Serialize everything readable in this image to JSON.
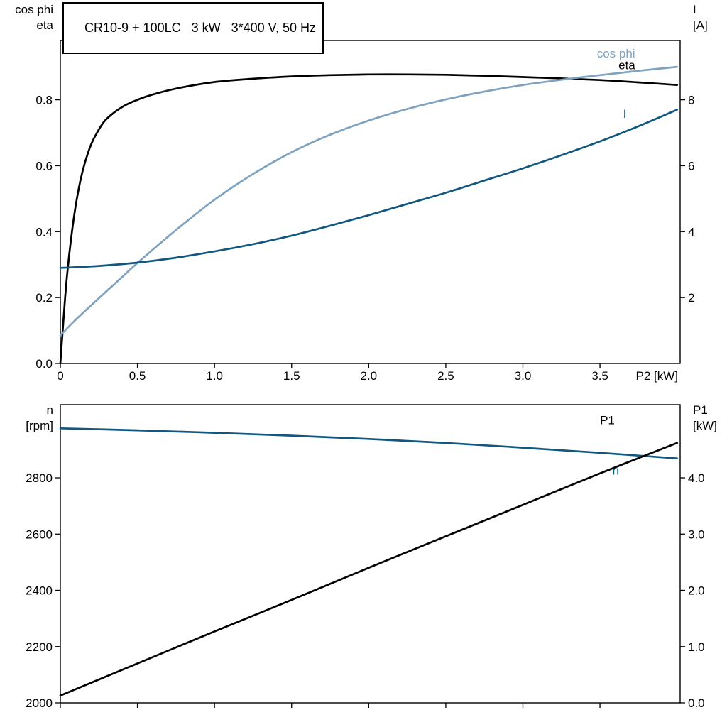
{
  "title_box": "CR10-9 + 100LC   3 kW   3*400 V, 50 Hz",
  "colors": {
    "black": "#000000",
    "dark_blue": "#11577F",
    "light_blue": "#7EA2BF",
    "axis": "#000000",
    "background": "#ffffff"
  },
  "chart_data": [
    {
      "type": "line",
      "title": "CR10-9 + 100LC   3 kW   3*400 V, 50 Hz",
      "x_axis": {
        "label": "P2 [kW]",
        "range": [
          0,
          4.02
        ],
        "ticks": [
          0,
          0.5,
          1,
          1.5,
          2,
          2.5,
          3,
          3.5
        ],
        "tick_labels": [
          "0",
          "0.5",
          "1.0",
          "1.5",
          "2.0",
          "2.5",
          "3.0",
          "3.5"
        ]
      },
      "left_axis": {
        "label_lines": [
          "cos phi",
          "eta"
        ],
        "range": [
          0,
          0.98
        ],
        "ticks": [
          0,
          0.2,
          0.4,
          0.6,
          0.8
        ],
        "tick_labels": [
          "0.0",
          "0.2",
          "0.4",
          "0.6",
          "0.8"
        ]
      },
      "right_axis": {
        "label_lines": [
          "I",
          "[A]"
        ],
        "range": [
          0,
          9.8
        ],
        "ticks": [
          2,
          4,
          6,
          8
        ],
        "tick_labels": [
          "2",
          "4",
          "6",
          "8"
        ]
      },
      "grid": false,
      "series": [
        {
          "name": "eta",
          "axis": "left",
          "color": "#000000",
          "label": "eta",
          "label_color": "#000000",
          "label_at": [
            3.62,
            0.893
          ],
          "x": [
            0,
            0.02,
            0.04,
            0.07,
            0.1,
            0.13,
            0.16,
            0.2,
            0.25,
            0.3,
            0.4,
            0.5,
            0.6,
            0.75,
            1.0,
            1.25,
            1.5,
            1.75,
            2.0,
            2.25,
            2.5,
            2.75,
            3.0,
            3.25,
            3.5,
            3.75,
            4.0
          ],
          "y": [
            0,
            0.13,
            0.25,
            0.38,
            0.48,
            0.555,
            0.61,
            0.665,
            0.71,
            0.742,
            0.778,
            0.8,
            0.816,
            0.834,
            0.854,
            0.864,
            0.871,
            0.875,
            0.877,
            0.877,
            0.876,
            0.873,
            0.869,
            0.865,
            0.86,
            0.853,
            0.845
          ]
        },
        {
          "name": "cos phi",
          "axis": "left",
          "color": "#7EA2BF",
          "label": "cos phi",
          "label_color": "#7EA2BF",
          "label_at": [
            3.48,
            0.928
          ],
          "x": [
            0,
            0.1,
            0.25,
            0.4,
            0.5,
            0.75,
            1.0,
            1.25,
            1.5,
            1.75,
            2.0,
            2.25,
            2.5,
            2.75,
            3.0,
            3.25,
            3.5,
            3.75,
            4.0
          ],
          "y": [
            0.085,
            0.133,
            0.198,
            0.262,
            0.305,
            0.405,
            0.497,
            0.575,
            0.641,
            0.694,
            0.737,
            0.772,
            0.801,
            0.825,
            0.845,
            0.861,
            0.875,
            0.888,
            0.9
          ]
        },
        {
          "name": "I",
          "axis": "right",
          "color": "#11577F",
          "label": "I",
          "label_color": "#11577F",
          "label_at": [
            3.65,
            7.45
          ],
          "x": [
            0,
            0.25,
            0.5,
            0.75,
            1.0,
            1.25,
            1.5,
            1.75,
            2.0,
            2.25,
            2.5,
            2.75,
            3.0,
            3.25,
            3.5,
            3.75,
            4.0
          ],
          "y": [
            2.9,
            2.96,
            3.06,
            3.21,
            3.4,
            3.62,
            3.88,
            4.18,
            4.5,
            4.84,
            5.18,
            5.55,
            5.92,
            6.32,
            6.74,
            7.2,
            7.7
          ]
        }
      ]
    },
    {
      "type": "line",
      "x_axis": {
        "label": "",
        "range": [
          0,
          4.02
        ],
        "ticks": [
          0,
          0.5,
          1,
          1.5,
          2,
          2.5,
          3,
          3.5
        ],
        "tick_labels": []
      },
      "left_axis": {
        "label_lines": [
          "n",
          "[rpm]"
        ],
        "range": [
          2000,
          3060
        ],
        "ticks": [
          2000,
          2200,
          2400,
          2600,
          2800
        ],
        "tick_labels": [
          "2000",
          "2200",
          "2400",
          "2600",
          "2800"
        ]
      },
      "right_axis": {
        "label_lines": [
          "P1",
          "[kW]"
        ],
        "range": [
          0,
          5.3
        ],
        "ticks": [
          0,
          1,
          2,
          3,
          4
        ],
        "tick_labels": [
          "0.0",
          "1.0",
          "2.0",
          "3.0",
          "4.0"
        ]
      },
      "grid": false,
      "series": [
        {
          "name": "n",
          "axis": "left",
          "color": "#11577F",
          "label": "n",
          "label_color": "#11577F",
          "label_at": [
            3.58,
            2812
          ],
          "x": [
            0,
            0.5,
            1.0,
            1.5,
            2.0,
            2.5,
            3.0,
            3.5,
            4.0
          ],
          "y": [
            2976,
            2969,
            2960,
            2950,
            2938,
            2924,
            2907,
            2889,
            2869
          ]
        },
        {
          "name": "P1",
          "axis": "right",
          "color": "#000000",
          "label": "P1",
          "label_color": "#000000",
          "label_at": [
            3.5,
            4.95
          ],
          "x": [
            0,
            0.5,
            1.0,
            1.5,
            2.0,
            2.5,
            3.0,
            3.5,
            4.0
          ],
          "y": [
            0.13,
            0.7,
            1.27,
            1.83,
            2.4,
            2.96,
            3.52,
            4.08,
            4.62
          ]
        }
      ]
    }
  ]
}
